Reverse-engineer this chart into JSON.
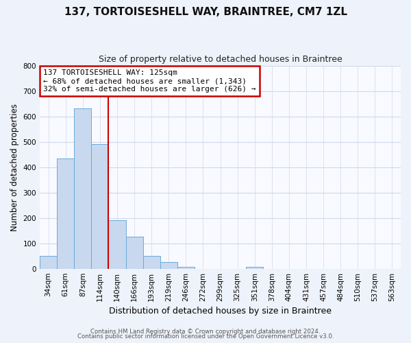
{
  "title": "137, TORTOISESHELL WAY, BRAINTREE, CM7 1ZL",
  "subtitle": "Size of property relative to detached houses in Braintree",
  "xlabel": "Distribution of detached houses by size in Braintree",
  "ylabel": "Number of detached properties",
  "footer_line1": "Contains HM Land Registry data © Crown copyright and database right 2024.",
  "footer_line2": "Contains public sector information licensed under the Open Government Licence v3.0.",
  "categories": [
    "34sqm",
    "61sqm",
    "87sqm",
    "114sqm",
    "140sqm",
    "166sqm",
    "193sqm",
    "219sqm",
    "246sqm",
    "272sqm",
    "299sqm",
    "325sqm",
    "351sqm",
    "378sqm",
    "404sqm",
    "431sqm",
    "457sqm",
    "484sqm",
    "510sqm",
    "537sqm",
    "563sqm"
  ],
  "values": [
    50,
    435,
    630,
    490,
    192,
    125,
    50,
    25,
    8,
    0,
    0,
    0,
    8,
    0,
    0,
    0,
    0,
    0,
    0,
    0,
    0
  ],
  "bar_color": "#c8d8ee",
  "bar_edge_color": "#6baad8",
  "grid_color": "#d0d8e8",
  "background_color": "#eef2fa",
  "plot_bg_color": "#f8faff",
  "property_line_x": 3.5,
  "annotation_text": "137 TORTOISESHELL WAY: 125sqm\n← 68% of detached houses are smaller (1,343)\n32% of semi-detached houses are larger (626) →",
  "annotation_box_color": "#ffffff",
  "annotation_box_edge_color": "#cc0000",
  "vline_color": "#cc0000",
  "ylim": [
    0,
    800
  ],
  "yticks": [
    0,
    100,
    200,
    300,
    400,
    500,
    600,
    700,
    800
  ],
  "title_fontsize": 11,
  "subtitle_fontsize": 9,
  "annotation_fontsize": 8,
  "ylabel_fontsize": 8.5,
  "xlabel_fontsize": 9,
  "tick_fontsize": 7.5
}
